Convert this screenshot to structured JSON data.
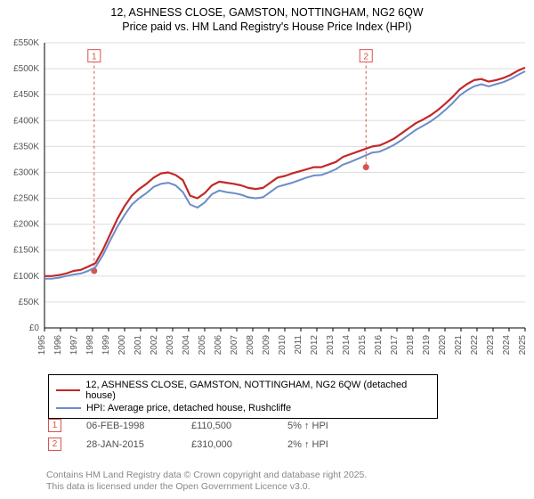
{
  "title": {
    "line1": "12, ASHNESS CLOSE, GAMSTON, NOTTINGHAM, NG2 6QW",
    "line2": "Price paid vs. HM Land Registry's House Price Index (HPI)",
    "fontsize": 12.5,
    "color": "#000000"
  },
  "chart": {
    "type": "line",
    "background_color": "#ffffff",
    "grid_color": "#dddddd",
    "axis_color": "#000000",
    "tick_fontsize": 10,
    "tick_color": "#555555",
    "ylabel_prefix": "£",
    "ylim": [
      0,
      550
    ],
    "ytick_step": 50,
    "yticks": [
      "£0",
      "£50K",
      "£100K",
      "£150K",
      "£200K",
      "£250K",
      "£300K",
      "£350K",
      "£400K",
      "£450K",
      "£500K",
      "£550K"
    ],
    "xlim": [
      1995,
      2025
    ],
    "xticks": [
      1995,
      1996,
      1997,
      1998,
      1999,
      2000,
      2001,
      2002,
      2003,
      2004,
      2005,
      2006,
      2007,
      2008,
      2009,
      2010,
      2011,
      2012,
      2013,
      2014,
      2015,
      2016,
      2017,
      2018,
      2019,
      2020,
      2021,
      2022,
      2023,
      2024,
      2025
    ],
    "series": [
      {
        "key": "price_paid",
        "label": "12, ASHNESS CLOSE, GAMSTON, NOTTINGHAM, NG2 6QW (detached house)",
        "color": "#c22828",
        "line_width": 2.2,
        "values_k": [
          100,
          100,
          102,
          105,
          110,
          112,
          118,
          125,
          150,
          180,
          210,
          235,
          255,
          268,
          278,
          290,
          298,
          300,
          295,
          285,
          255,
          250,
          260,
          275,
          282,
          280,
          278,
          275,
          270,
          268,
          270,
          280,
          290,
          293,
          298,
          302,
          306,
          310,
          310,
          315,
          320,
          330,
          335,
          340,
          345,
          350,
          352,
          358,
          365,
          375,
          385,
          395,
          402,
          410,
          420,
          432,
          445,
          460,
          470,
          478,
          480,
          475,
          478,
          482,
          488,
          496,
          502
        ]
      },
      {
        "key": "hpi",
        "label": "HPI: Average price, detached house, Rushcliffe",
        "color": "#6c8cc8",
        "line_width": 2.0,
        "values_k": [
          95,
          95,
          97,
          100,
          103,
          105,
          110,
          117,
          140,
          168,
          195,
          218,
          238,
          250,
          260,
          272,
          278,
          280,
          275,
          262,
          238,
          232,
          242,
          258,
          265,
          262,
          260,
          257,
          252,
          250,
          252,
          262,
          272,
          276,
          280,
          285,
          290,
          294,
          295,
          300,
          306,
          315,
          320,
          326,
          332,
          338,
          340,
          346,
          353,
          362,
          372,
          382,
          390,
          398,
          408,
          420,
          433,
          448,
          458,
          466,
          470,
          466,
          470,
          474,
          480,
          488,
          495
        ]
      }
    ],
    "markers": [
      {
        "id": "1",
        "year": 1998.1,
        "value_k": 110,
        "color": "#d9534f"
      },
      {
        "id": "2",
        "year": 2015.07,
        "value_k": 310,
        "color": "#d9534f"
      }
    ],
    "marker_box_top_y_k": 530
  },
  "legend": {
    "border_color": "#000000",
    "fontsize": 11
  },
  "transactions": [
    {
      "id": "1",
      "date": "06-FEB-1998",
      "price": "£110,500",
      "pct": "5% ↑ HPI"
    },
    {
      "id": "2",
      "date": "28-JAN-2015",
      "price": "£310,000",
      "pct": "2% ↑ HPI"
    }
  ],
  "footer": {
    "line1": "Contains HM Land Registry data © Crown copyright and database right 2025.",
    "line2": "This data is licensed under the Open Government Licence v3.0.",
    "color": "#888888",
    "fontsize": 10.5
  }
}
